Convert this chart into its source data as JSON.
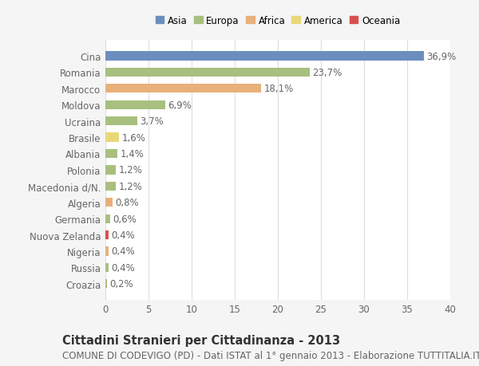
{
  "countries": [
    "Cina",
    "Romania",
    "Marocco",
    "Moldova",
    "Ucraina",
    "Brasile",
    "Albania",
    "Polonia",
    "Macedonia d/N.",
    "Algeria",
    "Germania",
    "Nuova Zelanda",
    "Nigeria",
    "Russia",
    "Croazia"
  ],
  "values": [
    36.9,
    23.7,
    18.1,
    6.9,
    3.7,
    1.6,
    1.4,
    1.2,
    1.2,
    0.8,
    0.6,
    0.4,
    0.4,
    0.4,
    0.2
  ],
  "continents": [
    "Asia",
    "Europa",
    "Africa",
    "Europa",
    "Europa",
    "America",
    "Europa",
    "Europa",
    "Europa",
    "Africa",
    "Europa",
    "Oceania",
    "Africa",
    "Europa",
    "Europa"
  ],
  "colors": {
    "Asia": "#6b8ebf",
    "Europa": "#a8bf7f",
    "Africa": "#e8b07a",
    "America": "#e8d878",
    "Oceania": "#d94f4f"
  },
  "legend_order": [
    "Asia",
    "Europa",
    "Africa",
    "America",
    "Oceania"
  ],
  "title": "Cittadini Stranieri per Cittadinanza - 2013",
  "subtitle": "COMUNE DI CODEVIGO (PD) - Dati ISTAT al 1° gennaio 2013 - Elaborazione TUTTITALIA.IT",
  "xlim": [
    0,
    40
  ],
  "xticks": [
    0,
    5,
    10,
    15,
    20,
    25,
    30,
    35,
    40
  ],
  "background_color": "#f5f5f5",
  "plot_background": "#ffffff",
  "grid_color": "#dddddd",
  "bar_height": 0.55,
  "label_fontsize": 8.5,
  "tick_fontsize": 8.5,
  "title_fontsize": 10.5,
  "subtitle_fontsize": 8.5
}
